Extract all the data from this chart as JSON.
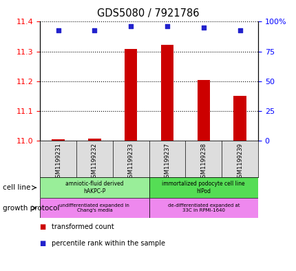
{
  "title": "GDS5080 / 7921786",
  "samples": [
    "GSM1199231",
    "GSM1199232",
    "GSM1199233",
    "GSM1199237",
    "GSM1199238",
    "GSM1199239"
  ],
  "transformed_counts": [
    11.005,
    11.008,
    11.308,
    11.322,
    11.205,
    11.152
  ],
  "percentile_ranks": [
    93,
    93,
    96,
    96,
    95,
    93
  ],
  "ylim_left": [
    11.0,
    11.4
  ],
  "ylim_right": [
    0,
    100
  ],
  "yticks_left": [
    11.0,
    11.1,
    11.2,
    11.3,
    11.4
  ],
  "yticks_right": [
    0,
    25,
    50,
    75,
    100
  ],
  "ytick_labels_right": [
    "0",
    "25",
    "50",
    "75",
    "100%"
  ],
  "bar_color": "#CC0000",
  "dot_color": "#2222CC",
  "cell_line_groups": [
    {
      "label": "amniotic-fluid derived\nhAKPC-P",
      "color": "#99EE99",
      "start": 0,
      "end": 3
    },
    {
      "label": "immortalized podocyte cell line\nhIPod",
      "color": "#55DD55",
      "start": 3,
      "end": 6
    }
  ],
  "growth_protocol_groups": [
    {
      "label": "undifferentiated expanded in\nChang's media",
      "color": "#EE88EE",
      "start": 0,
      "end": 3
    },
    {
      "label": "de-differentiated expanded at\n33C in RPMI-1640",
      "color": "#EE88EE",
      "start": 3,
      "end": 6
    }
  ],
  "xlabel_cell_line": "cell line",
  "xlabel_growth_protocol": "growth protocol",
  "legend_transformed": "transformed count",
  "legend_percentile": "percentile rank within the sample",
  "legend_color_transformed": "#CC0000",
  "legend_color_percentile": "#2222CC"
}
